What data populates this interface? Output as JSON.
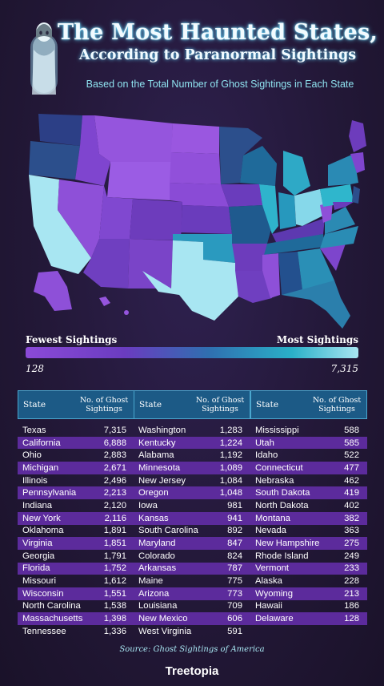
{
  "header": {
    "title": "The Most Haunted States,",
    "subtitle": "According to Paranormal Sightings",
    "tagline": "Based on the Total Number of Ghost Sightings in Each State"
  },
  "legend": {
    "low_label": "Fewest Sightings",
    "high_label": "Most Sightings",
    "min": "128",
    "max": "7,315",
    "colors": [
      "#8b4ad8",
      "#6a3cc0",
      "#2f6fb0",
      "#2ab0c8",
      "#a8e6f2"
    ]
  },
  "table_header": {
    "state": "State",
    "sightings_line1": "No. of Ghost",
    "sightings_line2": "Sightings"
  },
  "chart_data": {
    "type": "table",
    "columns": [
      "State",
      "No. of Ghost Sightings"
    ],
    "rows": [
      [
        "Texas",
        "7,315"
      ],
      [
        "California",
        "6,888"
      ],
      [
        "Ohio",
        "2,883"
      ],
      [
        "Michigan",
        "2,671"
      ],
      [
        "Illinois",
        "2,496"
      ],
      [
        "Pennsylvania",
        "2,213"
      ],
      [
        "Indiana",
        "2,120"
      ],
      [
        "New York",
        "2,116"
      ],
      [
        "Oklahoma",
        "1,891"
      ],
      [
        "Virginia",
        "1,851"
      ],
      [
        "Georgia",
        "1,791"
      ],
      [
        "Florida",
        "1,752"
      ],
      [
        "Missouri",
        "1,612"
      ],
      [
        "Wisconsin",
        "1,551"
      ],
      [
        "North Carolina",
        "1,538"
      ],
      [
        "Massachusetts",
        "1,398"
      ],
      [
        "Tennessee",
        "1,336"
      ],
      [
        "Washington",
        "1,283"
      ],
      [
        "Kentucky",
        "1,224"
      ],
      [
        "Alabama",
        "1,192"
      ],
      [
        "Minnesota",
        "1,089"
      ],
      [
        "New Jersey",
        "1,084"
      ],
      [
        "Oregon",
        "1,048"
      ],
      [
        "Iowa",
        "981"
      ],
      [
        "Kansas",
        "941"
      ],
      [
        "South Carolina",
        "892"
      ],
      [
        "Maryland",
        "847"
      ],
      [
        "Colorado",
        "824"
      ],
      [
        "Arkansas",
        "787"
      ],
      [
        "Maine",
        "775"
      ],
      [
        "Arizona",
        "773"
      ],
      [
        "Louisiana",
        "709"
      ],
      [
        "New Mexico",
        "606"
      ],
      [
        "West Virginia",
        "591"
      ],
      [
        "Mississippi",
        "588"
      ],
      [
        "Utah",
        "585"
      ],
      [
        "Idaho",
        "522"
      ],
      [
        "Connecticut",
        "477"
      ],
      [
        "Nebraska",
        "462"
      ],
      [
        "South Dakota",
        "419"
      ],
      [
        "North Dakota",
        "402"
      ],
      [
        "Montana",
        "382"
      ],
      [
        "Nevada",
        "363"
      ],
      [
        "New Hampshire",
        "275"
      ],
      [
        "Rhode Island",
        "249"
      ],
      [
        "Vermont",
        "233"
      ],
      [
        "Alaska",
        "228"
      ],
      [
        "Wyoming",
        "213"
      ],
      [
        "Hawaii",
        "186"
      ],
      [
        "Delaware",
        "128"
      ]
    ]
  },
  "source": "Source: Ghost Sightings of America",
  "brand": "Treetopia"
}
